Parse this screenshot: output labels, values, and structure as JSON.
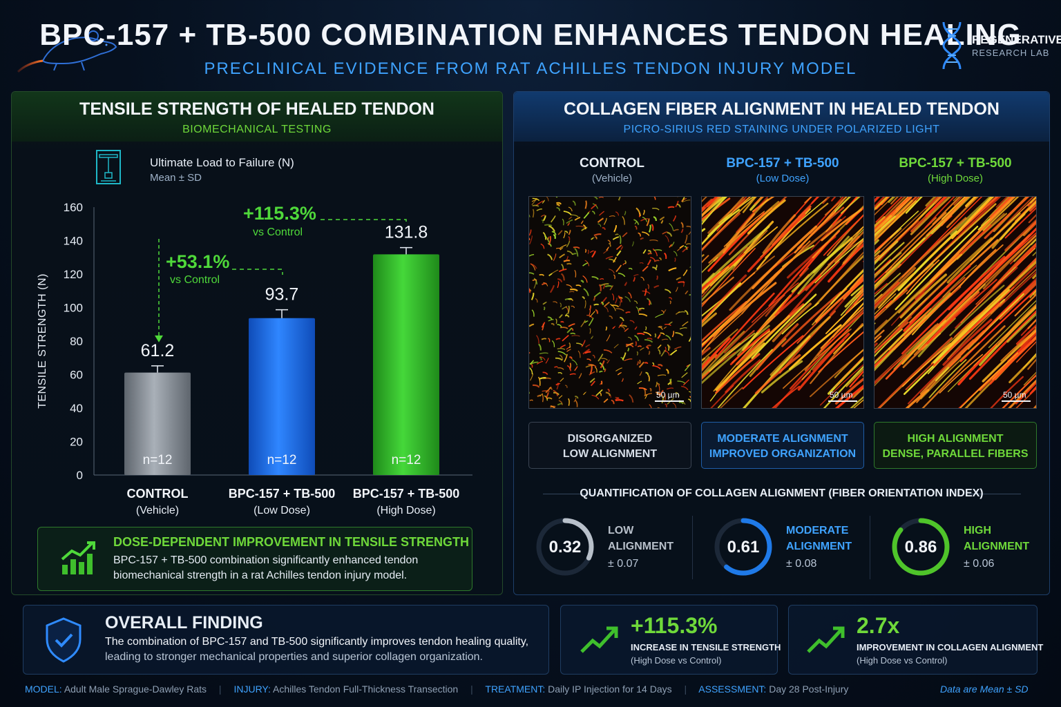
{
  "header": {
    "title": "BPC-157 + TB-500 COMBINATION ENHANCES TENDON HEALING",
    "subtitle": "PRECLINICAL EVIDENCE FROM RAT ACHILLES TENDON INJURY MODEL",
    "lab_name_line1": "REGENERATIVE",
    "lab_name_line2": "RESEARCH LAB",
    "icons": [
      "rat-icon",
      "dna-icon"
    ]
  },
  "left_panel": {
    "title": "TENSILE STRENGTH OF HEALED TENDON",
    "subtitle": "BIOMECHANICAL TESTING",
    "metric_label": "Ultimate Load to Failure (N)",
    "metric_sub": "Mean ± SD",
    "callout": {
      "title": "DOSE-DEPENDENT IMPROVEMENT IN TENSILE STRENGTH",
      "line1": "BPC-157 + TB-500 combination significantly enhanced tendon",
      "line2": "biomechanical strength in a rat Achilles tendon injury model."
    }
  },
  "chart_data": {
    "type": "bar",
    "ylabel": "TENSILE STRENGTH (N)",
    "ylim": [
      0,
      160
    ],
    "yticks": [
      0,
      20,
      40,
      60,
      80,
      100,
      120,
      140,
      160
    ],
    "categories": [
      {
        "line1": "CONTROL",
        "line2": "(Vehicle)"
      },
      {
        "line1": "BPC-157 + TB-500",
        "line2": "(Low Dose)"
      },
      {
        "line1": "BPC-157 + TB-500",
        "line2": "(High Dose)"
      }
    ],
    "values": [
      61.2,
      93.7,
      131.8
    ],
    "value_labels": [
      "61.2",
      "93.7",
      "131.8"
    ],
    "errors": [
      4,
      5,
      4
    ],
    "n_labels": [
      "n=12",
      "n=12",
      "n=12"
    ],
    "colors": [
      "#8d949c",
      "#1f6fe0",
      "#33b52c"
    ],
    "annotations": [
      {
        "value": "+53.1%",
        "sub": "vs Control"
      },
      {
        "value": "+115.3%",
        "sub": "vs Control"
      }
    ]
  },
  "right_panel": {
    "title": "COLLAGEN FIBER ALIGNMENT IN HEALED TENDON",
    "subtitle": "PICRO-SIRIUS RED STAINING UNDER POLARIZED LIGHT",
    "columns": [
      {
        "title": "CONTROL",
        "sub": "(Vehicle)",
        "color": "#f2f5fa",
        "scale": "50 µm",
        "desc1": "DISORGANIZED",
        "desc2": "LOW ALIGNMENT",
        "desc_color": "#d7dee8"
      },
      {
        "title": "BPC-157 + TB-500",
        "sub": "(Low Dose)",
        "color": "#3fa3ff",
        "scale": "50 µm",
        "desc1": "MODERATE ALIGNMENT",
        "desc2": "IMPROVED ORGANIZATION",
        "desc_color": "#3fa3ff"
      },
      {
        "title": "BPC-157 + TB-500",
        "sub": "(High Dose)",
        "color": "#6fd93a",
        "scale": "50 µm",
        "desc1": "HIGH ALIGNMENT",
        "desc2": "DENSE, PARALLEL FIBERS",
        "desc_color": "#6fd93a"
      }
    ],
    "quant_title": "QUANTIFICATION OF COLLAGEN ALIGNMENT (FIBER ORIENTATION INDEX)",
    "rings": [
      {
        "value": "0.32",
        "fraction": 0.32,
        "l1": "LOW",
        "l2": "ALIGNMENT",
        "sd": "± 0.07",
        "color": "#b8c0ca"
      },
      {
        "value": "0.61",
        "fraction": 0.61,
        "l1": "MODERATE",
        "l2": "ALIGNMENT",
        "sd": "± 0.08",
        "color": "#1f7ae8"
      },
      {
        "value": "0.86",
        "fraction": 0.86,
        "l1": "HIGH",
        "l2": "ALIGNMENT",
        "sd": "± 0.06",
        "color": "#4fc42a"
      }
    ]
  },
  "bottom": {
    "finding_title": "OVERALL FINDING",
    "finding_line1": "The combination of BPC-157 and TB-500 significantly improves tendon healing quality,",
    "finding_line2": "leading to stronger mechanical properties and superior collagen organization.",
    "stat1": {
      "value": "+115.3%",
      "l1": "INCREASE IN TENSILE STRENGTH",
      "l2": "(High Dose vs Control)"
    },
    "stat2": {
      "value": "2.7x",
      "l1": "IMPROVEMENT IN COLLAGEN ALIGNMENT",
      "l2": "(High Dose vs Control)"
    }
  },
  "footer": {
    "model_k": "MODEL:",
    "model_v": "Adult Male Sprague-Dawley Rats",
    "injury_k": "INJURY:",
    "injury_v": "Achilles Tendon Full-Thickness Transection",
    "treatment_k": "TREATMENT:",
    "treatment_v": "Daily IP Injection for 14 Days",
    "assessment_k": "ASSESSMENT:",
    "assessment_v": "Day 28 Post-Injury",
    "note": "Data are Mean ± SD"
  }
}
